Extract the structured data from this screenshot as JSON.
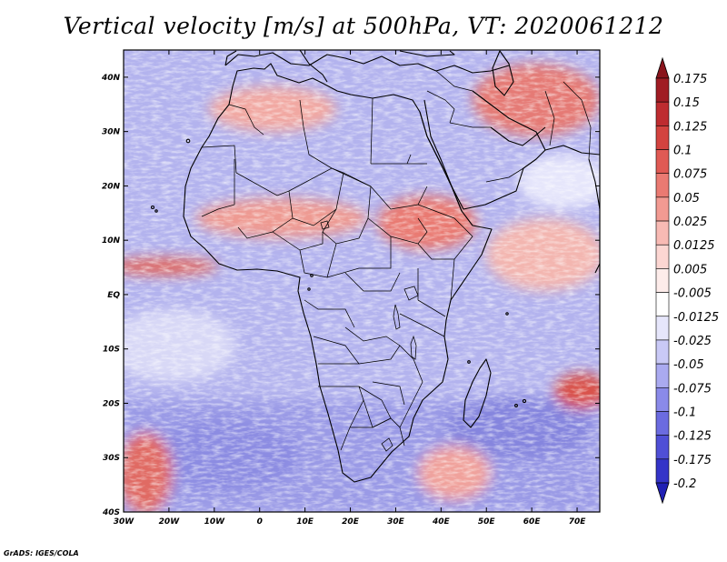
{
  "title": "Vertical velocity [m/s] at 500hPa, VT: 2020061212",
  "footer": "GrADS: IGES/COLA",
  "colors": {
    "frame": "#000000",
    "coast": "#000000",
    "background": "#ffffff"
  },
  "chart_data": {
    "type": "heatmap",
    "variable": "Vertical velocity",
    "units": "m/s",
    "level": "500hPa",
    "valid_time": "2020061212",
    "xlim": [
      -30,
      75
    ],
    "ylim": [
      -40,
      45
    ],
    "x_ticks": [
      {
        "value": -30,
        "label": "30W"
      },
      {
        "value": -20,
        "label": "20W"
      },
      {
        "value": -10,
        "label": "10W"
      },
      {
        "value": 0,
        "label": "0"
      },
      {
        "value": 10,
        "label": "10E"
      },
      {
        "value": 20,
        "label": "20E"
      },
      {
        "value": 30,
        "label": "30E"
      },
      {
        "value": 40,
        "label": "40E"
      },
      {
        "value": 50,
        "label": "50E"
      },
      {
        "value": 60,
        "label": "60E"
      },
      {
        "value": 70,
        "label": "70E"
      }
    ],
    "y_ticks": [
      {
        "value": 40,
        "label": "40N"
      },
      {
        "value": 30,
        "label": "30N"
      },
      {
        "value": 20,
        "label": "20N"
      },
      {
        "value": 10,
        "label": "10N"
      },
      {
        "value": 0,
        "label": "EQ"
      },
      {
        "value": -10,
        "label": "10S"
      },
      {
        "value": -20,
        "label": "20S"
      },
      {
        "value": -30,
        "label": "30S"
      },
      {
        "value": -40,
        "label": "40S"
      }
    ],
    "legend": {
      "placement": "right",
      "levels": [
        {
          "label": "0.175",
          "color": "#a01c24"
        },
        {
          "label": "0.15",
          "color": "#be2c30"
        },
        {
          "label": "0.125",
          "color": "#d3433f"
        },
        {
          "label": "0.1",
          "color": "#e05a54"
        },
        {
          "label": "0.075",
          "color": "#ea7a72"
        },
        {
          "label": "0.05",
          "color": "#f29a92"
        },
        {
          "label": "0.025",
          "color": "#f8bab4"
        },
        {
          "label": "0.0125",
          "color": "#fcd6d2"
        },
        {
          "label": "0.005",
          "color": "#fdecea"
        },
        {
          "label": "-0.005",
          "color": "#ffffff"
        },
        {
          "label": "-0.0125",
          "color": "#e6e6fb"
        },
        {
          "label": "-0.025",
          "color": "#c9c9f6"
        },
        {
          "label": "-0.05",
          "color": "#aaaaf0"
        },
        {
          "label": "-0.075",
          "color": "#8a8ae9"
        },
        {
          "label": "-0.1",
          "color": "#6b6be0"
        },
        {
          "label": "-0.125",
          "color": "#4f4fd6"
        },
        {
          "label": "-0.175",
          "color": "#3434c8"
        },
        {
          "label": "-0.2",
          "color": "#2020b4"
        }
      ],
      "under_color": "#1a1a9a",
      "over_color": "#8a141c"
    }
  }
}
